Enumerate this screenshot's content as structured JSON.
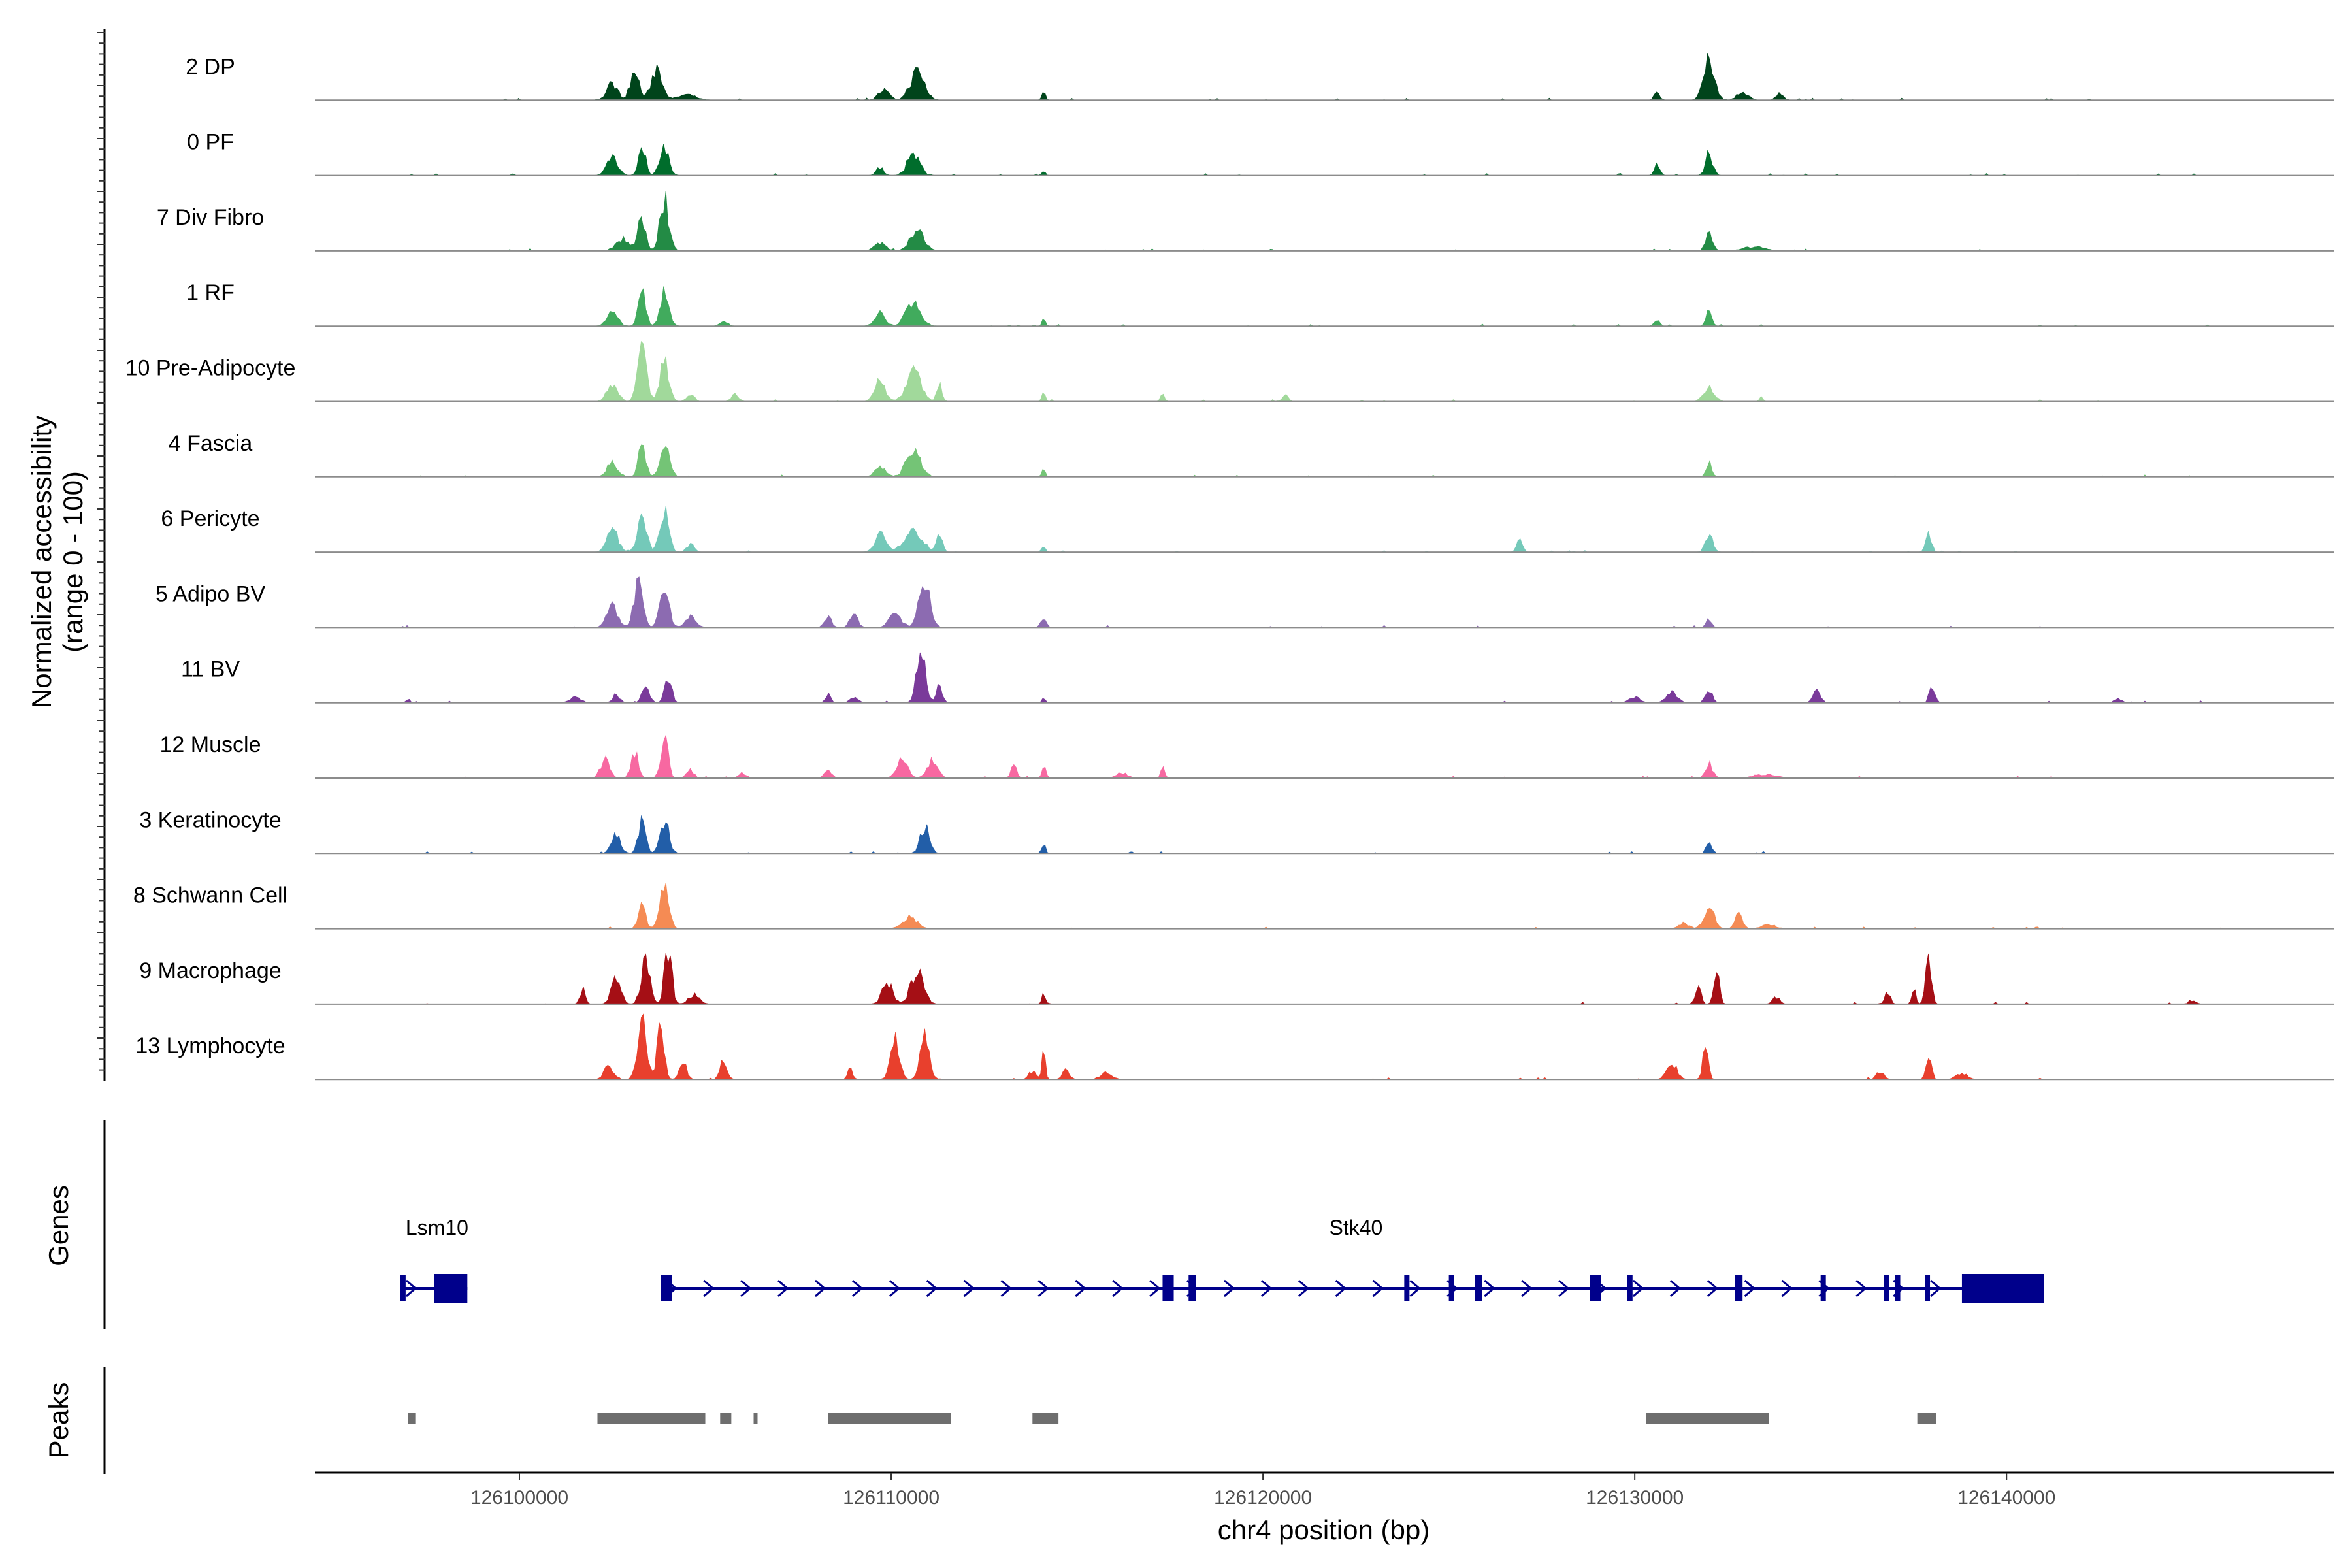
{
  "chart_data": {
    "type": "area",
    "title": "",
    "chromosome": "chr4",
    "xlabel": "chr4 position (bp)",
    "ylabel_line1": "Normalized accessibility",
    "ylabel_line2": "(range 0 - 100)",
    "xlim": [
      126094500,
      126148800
    ],
    "xticks": [
      126100000,
      126110000,
      126120000,
      126130000,
      126140000
    ],
    "xtick_labels": [
      "126100000",
      "126110000",
      "126120000",
      "126130000",
      "126140000"
    ],
    "tracks_title": "Genes",
    "peaks_title": "Peaks",
    "common_peaks": [
      [
        126103000,
        0.75,
        400
      ],
      [
        126103600,
        0.7,
        350
      ],
      [
        126110500,
        0.65,
        600
      ],
      [
        126132000,
        0.55,
        400
      ]
    ],
    "series": [
      {
        "name": "2 DP",
        "color": "#00441B",
        "peaks": [
          [
            126102500,
            0.25,
            300
          ],
          [
            126103100,
            0.42,
            250
          ],
          [
            126103700,
            0.5,
            300
          ],
          [
            126104500,
            0.08,
            500
          ],
          [
            126110700,
            0.42,
            400
          ],
          [
            126109800,
            0.15,
            300
          ],
          [
            126114100,
            0.12,
            100
          ],
          [
            126132000,
            0.58,
            300
          ],
          [
            126130600,
            0.12,
            150
          ],
          [
            126132900,
            0.12,
            300
          ],
          [
            126133900,
            0.1,
            200
          ]
        ]
      },
      {
        "name": "0 PF",
        "color": "#006D2C",
        "peaks": [
          [
            126102500,
            0.28,
            300
          ],
          [
            126103300,
            0.45,
            200
          ],
          [
            126103900,
            0.42,
            250
          ],
          [
            126110600,
            0.32,
            350
          ],
          [
            126109700,
            0.12,
            200
          ],
          [
            126114100,
            0.08,
            100
          ],
          [
            126130600,
            0.18,
            150
          ],
          [
            126132000,
            0.32,
            200
          ]
        ]
      },
      {
        "name": "7 Div Fibro",
        "color": "#238B45",
        "peaks": [
          [
            126102800,
            0.18,
            400
          ],
          [
            126103300,
            0.5,
            200
          ],
          [
            126103900,
            0.75,
            250
          ],
          [
            126110700,
            0.28,
            400
          ],
          [
            126109700,
            0.12,
            300
          ],
          [
            126132000,
            0.25,
            200
          ],
          [
            126133200,
            0.06,
            600
          ]
        ]
      },
      {
        "name": "1 RF",
        "color": "#41AB5D",
        "peaks": [
          [
            126102500,
            0.2,
            300
          ],
          [
            126103300,
            0.52,
            200
          ],
          [
            126103900,
            0.48,
            250
          ],
          [
            126105500,
            0.08,
            200
          ],
          [
            126109700,
            0.2,
            300
          ],
          [
            126110600,
            0.38,
            400
          ],
          [
            126114100,
            0.1,
            100
          ],
          [
            126130600,
            0.08,
            150
          ],
          [
            126132000,
            0.26,
            150
          ]
        ]
      },
      {
        "name": "10 Pre-Adipocyte",
        "color": "#A1D99B",
        "peaks": [
          [
            126102500,
            0.25,
            300
          ],
          [
            126103300,
            0.75,
            250
          ],
          [
            126103900,
            0.58,
            250
          ],
          [
            126104600,
            0.12,
            200
          ],
          [
            126105800,
            0.12,
            200
          ],
          [
            126109700,
            0.3,
            300
          ],
          [
            126110600,
            0.45,
            400
          ],
          [
            126111300,
            0.25,
            150
          ],
          [
            126114100,
            0.12,
            100
          ],
          [
            126117300,
            0.14,
            100
          ],
          [
            126120600,
            0.1,
            150
          ],
          [
            126132000,
            0.22,
            300
          ],
          [
            126133400,
            0.06,
            100
          ]
        ]
      },
      {
        "name": "4 Fascia",
        "color": "#74C476",
        "peaks": [
          [
            126102500,
            0.22,
            300
          ],
          [
            126103300,
            0.48,
            200
          ],
          [
            126103900,
            0.48,
            250
          ],
          [
            126109700,
            0.15,
            300
          ],
          [
            126110600,
            0.38,
            400
          ],
          [
            126114100,
            0.1,
            100
          ],
          [
            126132000,
            0.2,
            150
          ]
        ]
      },
      {
        "name": "6 Pericyte",
        "color": "#74C9B9",
        "peaks": [
          [
            126102500,
            0.35,
            300
          ],
          [
            126103300,
            0.58,
            250
          ],
          [
            126103900,
            0.6,
            250
          ],
          [
            126104600,
            0.12,
            200
          ],
          [
            126109700,
            0.28,
            300
          ],
          [
            126110600,
            0.35,
            500
          ],
          [
            126111300,
            0.3,
            150
          ],
          [
            126114100,
            0.1,
            100
          ],
          [
            126126900,
            0.22,
            150
          ],
          [
            126132000,
            0.3,
            200
          ],
          [
            126137900,
            0.32,
            150
          ]
        ]
      },
      {
        "name": "5 Adipo BV",
        "color": "#8C6BB1",
        "peaks": [
          [
            126102500,
            0.35,
            300
          ],
          [
            126103200,
            0.62,
            250
          ],
          [
            126103900,
            0.58,
            250
          ],
          [
            126104600,
            0.15,
            300
          ],
          [
            126108300,
            0.15,
            200
          ],
          [
            126109000,
            0.25,
            200
          ],
          [
            126110100,
            0.28,
            300
          ],
          [
            126110900,
            0.72,
            300
          ],
          [
            126114100,
            0.15,
            150
          ],
          [
            126132000,
            0.12,
            150
          ]
        ]
      },
      {
        "name": "11 BV",
        "color": "#7A3A9A",
        "peaks": [
          [
            126097000,
            0.06,
            100
          ],
          [
            126101500,
            0.08,
            300
          ],
          [
            126102600,
            0.12,
            200
          ],
          [
            126103400,
            0.28,
            200
          ],
          [
            126104000,
            0.35,
            200
          ],
          [
            126108300,
            0.12,
            150
          ],
          [
            126109000,
            0.1,
            200
          ],
          [
            126110800,
            0.78,
            250
          ],
          [
            126111300,
            0.3,
            150
          ],
          [
            126114100,
            0.08,
            100
          ],
          [
            126130000,
            0.08,
            300
          ],
          [
            126131000,
            0.15,
            300
          ],
          [
            126132000,
            0.18,
            200
          ],
          [
            126134900,
            0.18,
            200
          ],
          [
            126138000,
            0.28,
            150
          ],
          [
            126143000,
            0.06,
            200
          ]
        ]
      },
      {
        "name": "12 Muscle",
        "color": "#F768A1",
        "peaks": [
          [
            126102300,
            0.28,
            250
          ],
          [
            126103100,
            0.4,
            200
          ],
          [
            126103900,
            0.65,
            200
          ],
          [
            126104600,
            0.12,
            200
          ],
          [
            126106000,
            0.08,
            200
          ],
          [
            126108300,
            0.12,
            200
          ],
          [
            126110300,
            0.28,
            300
          ],
          [
            126111100,
            0.25,
            300
          ],
          [
            126113300,
            0.2,
            150
          ],
          [
            126114100,
            0.2,
            100
          ],
          [
            126116200,
            0.08,
            300
          ],
          [
            126117300,
            0.2,
            100
          ],
          [
            126132000,
            0.22,
            200
          ],
          [
            126133500,
            0.06,
            600
          ]
        ]
      },
      {
        "name": "3 Keratinocyte",
        "color": "#225EA8",
        "peaks": [
          [
            126102600,
            0.3,
            250
          ],
          [
            126103300,
            0.48,
            200
          ],
          [
            126103900,
            0.52,
            250
          ],
          [
            126110900,
            0.42,
            250
          ],
          [
            126114100,
            0.15,
            100
          ],
          [
            126132000,
            0.18,
            150
          ]
        ]
      },
      {
        "name": "8 Schwann Cell",
        "color": "#F58B54",
        "peaks": [
          [
            126103300,
            0.35,
            200
          ],
          [
            126103900,
            0.6,
            250
          ],
          [
            126110500,
            0.18,
            400
          ],
          [
            126132000,
            0.3,
            300
          ],
          [
            126132800,
            0.25,
            200
          ],
          [
            126131300,
            0.08,
            300
          ],
          [
            126133600,
            0.06,
            400
          ]
        ]
      },
      {
        "name": "9 Macrophage",
        "color": "#A50F15",
        "peaks": [
          [
            126101700,
            0.22,
            150
          ],
          [
            126102600,
            0.48,
            250
          ],
          [
            126103400,
            0.7,
            250
          ],
          [
            126104000,
            0.85,
            200
          ],
          [
            126104700,
            0.15,
            300
          ],
          [
            126109900,
            0.3,
            300
          ],
          [
            126110700,
            0.5,
            350
          ],
          [
            126114100,
            0.15,
            100
          ],
          [
            126131700,
            0.3,
            150
          ],
          [
            126132200,
            0.5,
            150
          ],
          [
            126133800,
            0.1,
            200
          ],
          [
            126136800,
            0.2,
            150
          ],
          [
            126137900,
            0.75,
            150
          ],
          [
            126137500,
            0.25,
            100
          ],
          [
            126145000,
            0.05,
            200
          ]
        ]
      },
      {
        "name": "13 Lymphocyte",
        "color": "#E8402D",
        "peaks": [
          [
            126102400,
            0.2,
            250
          ],
          [
            126103300,
            0.95,
            250
          ],
          [
            126103800,
            0.75,
            200
          ],
          [
            126104400,
            0.25,
            200
          ],
          [
            126105500,
            0.25,
            200
          ],
          [
            126108900,
            0.15,
            150
          ],
          [
            126110100,
            0.6,
            250
          ],
          [
            126110900,
            0.62,
            250
          ],
          [
            126113800,
            0.12,
            200
          ],
          [
            126114100,
            0.38,
            100
          ],
          [
            126114700,
            0.15,
            200
          ],
          [
            126115800,
            0.1,
            300
          ],
          [
            126131000,
            0.22,
            300
          ],
          [
            126131900,
            0.48,
            150
          ],
          [
            126136600,
            0.12,
            200
          ],
          [
            126137900,
            0.4,
            150
          ],
          [
            126138800,
            0.1,
            300
          ]
        ]
      }
    ],
    "genes": [
      {
        "name": "Lsm10",
        "strand": "+",
        "start": 126096800,
        "end": 126098600,
        "exons": [
          [
            126096800,
            126096900
          ],
          [
            126097700,
            126098600
          ]
        ]
      },
      {
        "name": "Stk40",
        "strand": "+",
        "start": 126103800,
        "end": 126141000,
        "exons": [
          [
            126103800,
            126104100
          ],
          [
            126117300,
            126117600
          ],
          [
            126118000,
            126118200
          ],
          [
            126123800,
            126123900
          ],
          [
            126125000,
            126125100
          ],
          [
            126125700,
            126125900
          ],
          [
            126128800,
            126129100
          ],
          [
            126129800,
            126129900
          ],
          [
            126132700,
            126132900
          ],
          [
            126135000,
            126135100
          ],
          [
            126136700,
            126136800
          ],
          [
            126137000,
            126137100
          ],
          [
            126137800,
            126137900
          ],
          [
            126138800,
            126141000
          ]
        ]
      }
    ],
    "peaks": [
      {
        "start": 126097000,
        "end": 126097200
      },
      {
        "start": 126102100,
        "end": 126105000
      },
      {
        "start": 126105400,
        "end": 126105700
      },
      {
        "start": 126106300,
        "end": 126106400
      },
      {
        "start": 126108300,
        "end": 126111600
      },
      {
        "start": 126113800,
        "end": 126114500
      },
      {
        "start": 126130300,
        "end": 126133600
      },
      {
        "start": 126137600,
        "end": 126138100
      }
    ]
  }
}
